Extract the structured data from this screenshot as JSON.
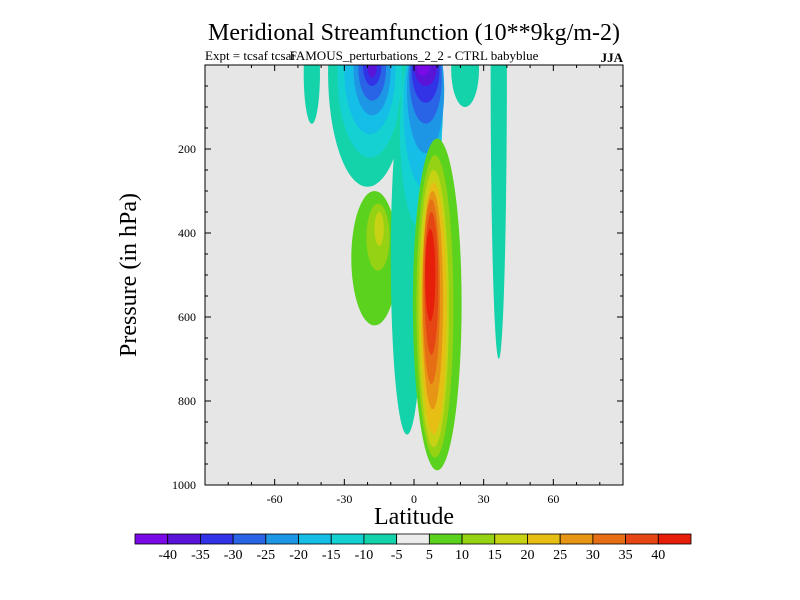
{
  "chart_data": {
    "type": "contour",
    "title": "Meridional Streamfunction (10**9kg/m-2)",
    "subtitle_left": "Expt = tcsaf tcsai",
    "subtitle_center": "FAMOUS_perturbations_2_2 - CTRL babyblue",
    "season": "JJA",
    "xlabel": "Latitude",
    "ylabel": "Pressure (in hPa)",
    "xlim": [
      -90,
      90
    ],
    "ylim": [
      1000,
      0
    ],
    "x_ticks": [
      -60,
      -30,
      0,
      30,
      60
    ],
    "x_tick_labels": [
      "-60",
      "-30",
      "0",
      "30",
      "60"
    ],
    "y_ticks": [
      200,
      400,
      600,
      800,
      1000
    ],
    "y_tick_labels": [
      "200",
      "400",
      "600",
      "800",
      "1000"
    ],
    "background_color": "#e6e6e6",
    "colorbar": {
      "colors": [
        "#7a0ae6",
        "#5a14d8",
        "#3232e6",
        "#2a64e6",
        "#1e96e6",
        "#14bee6",
        "#14d2d2",
        "#14d2aa",
        "#ececec",
        "#5ad21e",
        "#96d214",
        "#c8d214",
        "#e6be14",
        "#e69614",
        "#e66e14",
        "#e64614",
        "#e61e0a"
      ],
      "labels": [
        "-40",
        "-35",
        "-30",
        "-25",
        "-20",
        "-15",
        "-10",
        "-5",
        "5",
        "10",
        "15",
        "20",
        "25",
        "30",
        "35",
        "40"
      ]
    },
    "features": [
      {
        "name": "hadley-cell-positive",
        "lat_center": 8,
        "p_range": [
          180,
          960
        ],
        "peak": 40
      },
      {
        "name": "upper-negative-core",
        "lat_center": 5,
        "p_range": [
          0,
          870
        ],
        "peak": -40
      },
      {
        "name": "sh-upper-negative",
        "lat_center": -20,
        "p_range": [
          0,
          280
        ],
        "peak": -40
      },
      {
        "name": "sh-positive-tongue",
        "lat_center": -17,
        "p_range": [
          300,
          620
        ],
        "peak": 15
      },
      {
        "name": "nh-upper-negative",
        "lat_center": 22,
        "p_range": [
          0,
          110
        ],
        "peak": -10
      },
      {
        "name": "far-nh-negative",
        "lat_center": 37,
        "p_range": [
          0,
          700
        ],
        "peak": -10
      },
      {
        "name": "sh-small-negative",
        "lat_center": -44,
        "p_range": [
          0,
          140
        ],
        "peak": -10
      }
    ]
  }
}
